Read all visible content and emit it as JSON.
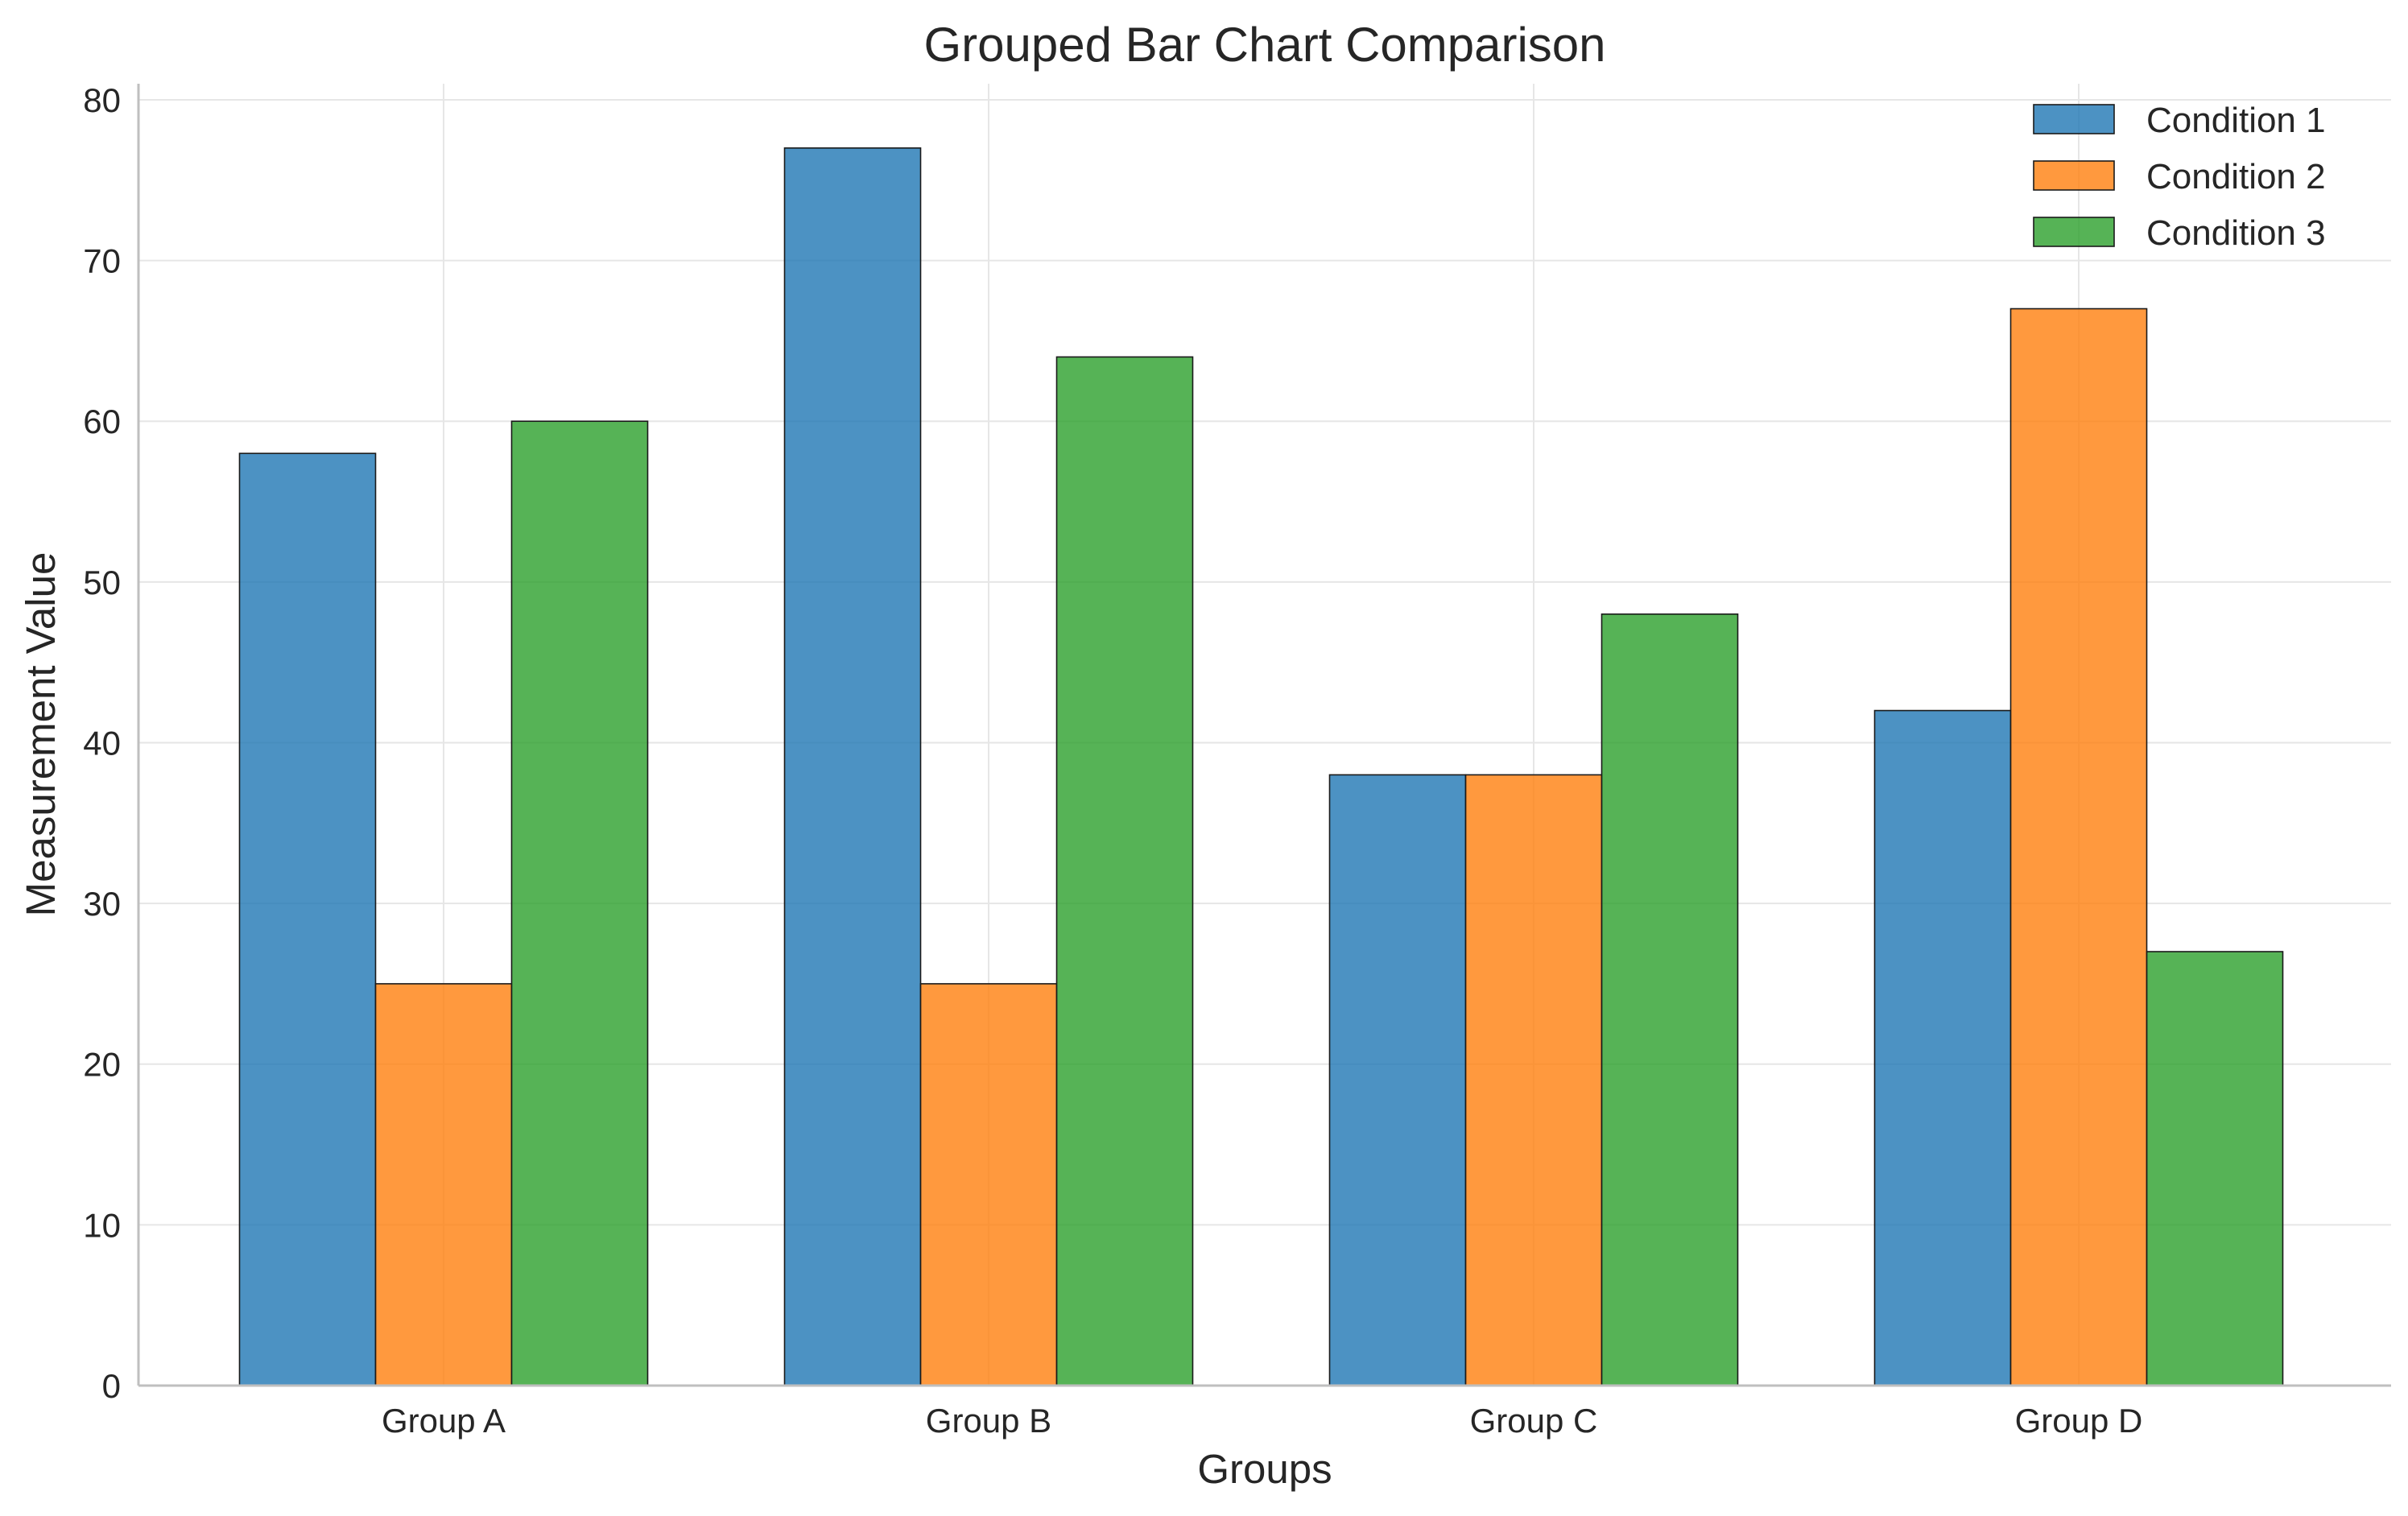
{
  "chart_data": {
    "type": "bar",
    "title": "Grouped Bar Chart Comparison",
    "xlabel": "Groups",
    "ylabel": "Measurement Value",
    "categories": [
      "Group A",
      "Group B",
      "Group C",
      "Group D"
    ],
    "series": [
      {
        "name": "Condition 1",
        "color": "#1f77b4",
        "values": [
          58,
          77,
          38,
          42
        ]
      },
      {
        "name": "Condition 2",
        "color": "#ff7f0e",
        "values": [
          25,
          25,
          38,
          67
        ]
      },
      {
        "name": "Condition 3",
        "color": "#2ca02c",
        "values": [
          60,
          64,
          48,
          27
        ]
      }
    ],
    "ylim": [
      0,
      81
    ],
    "yticks": [
      0,
      10,
      20,
      30,
      40,
      50,
      60,
      70,
      80
    ],
    "grid": true,
    "legend_position": "top-right"
  }
}
